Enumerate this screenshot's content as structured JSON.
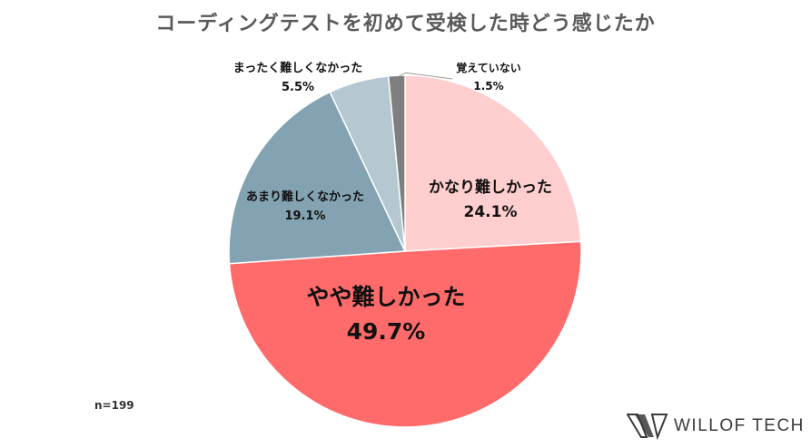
{
  "chart_data": {
    "type": "pie",
    "title": "コーディングテストを初めて受検した時どう感じたか",
    "slices": [
      {
        "label": "かなり難しかった",
        "value": 24.1,
        "value_label": "24.1%",
        "color": "#ffcece"
      },
      {
        "label": "やや難しかった",
        "value": 49.7,
        "value_label": "49.7%",
        "color": "#ff6b6b"
      },
      {
        "label": "あまり難しくなかった",
        "value": 19.1,
        "value_label": "19.1%",
        "color": "#84a3b2"
      },
      {
        "label": "まったく難しくなかった",
        "value": 5.5,
        "value_label": "5.5%",
        "color": "#b5c7d1"
      },
      {
        "label": "覚えていない",
        "value": 1.5,
        "value_label": "1.5%",
        "color": "#7f7f7f"
      }
    ],
    "start_angle_deg": 0,
    "direction": "clockwise",
    "legend": "none"
  },
  "note": "n=199",
  "brand": "WILLOF TECH"
}
